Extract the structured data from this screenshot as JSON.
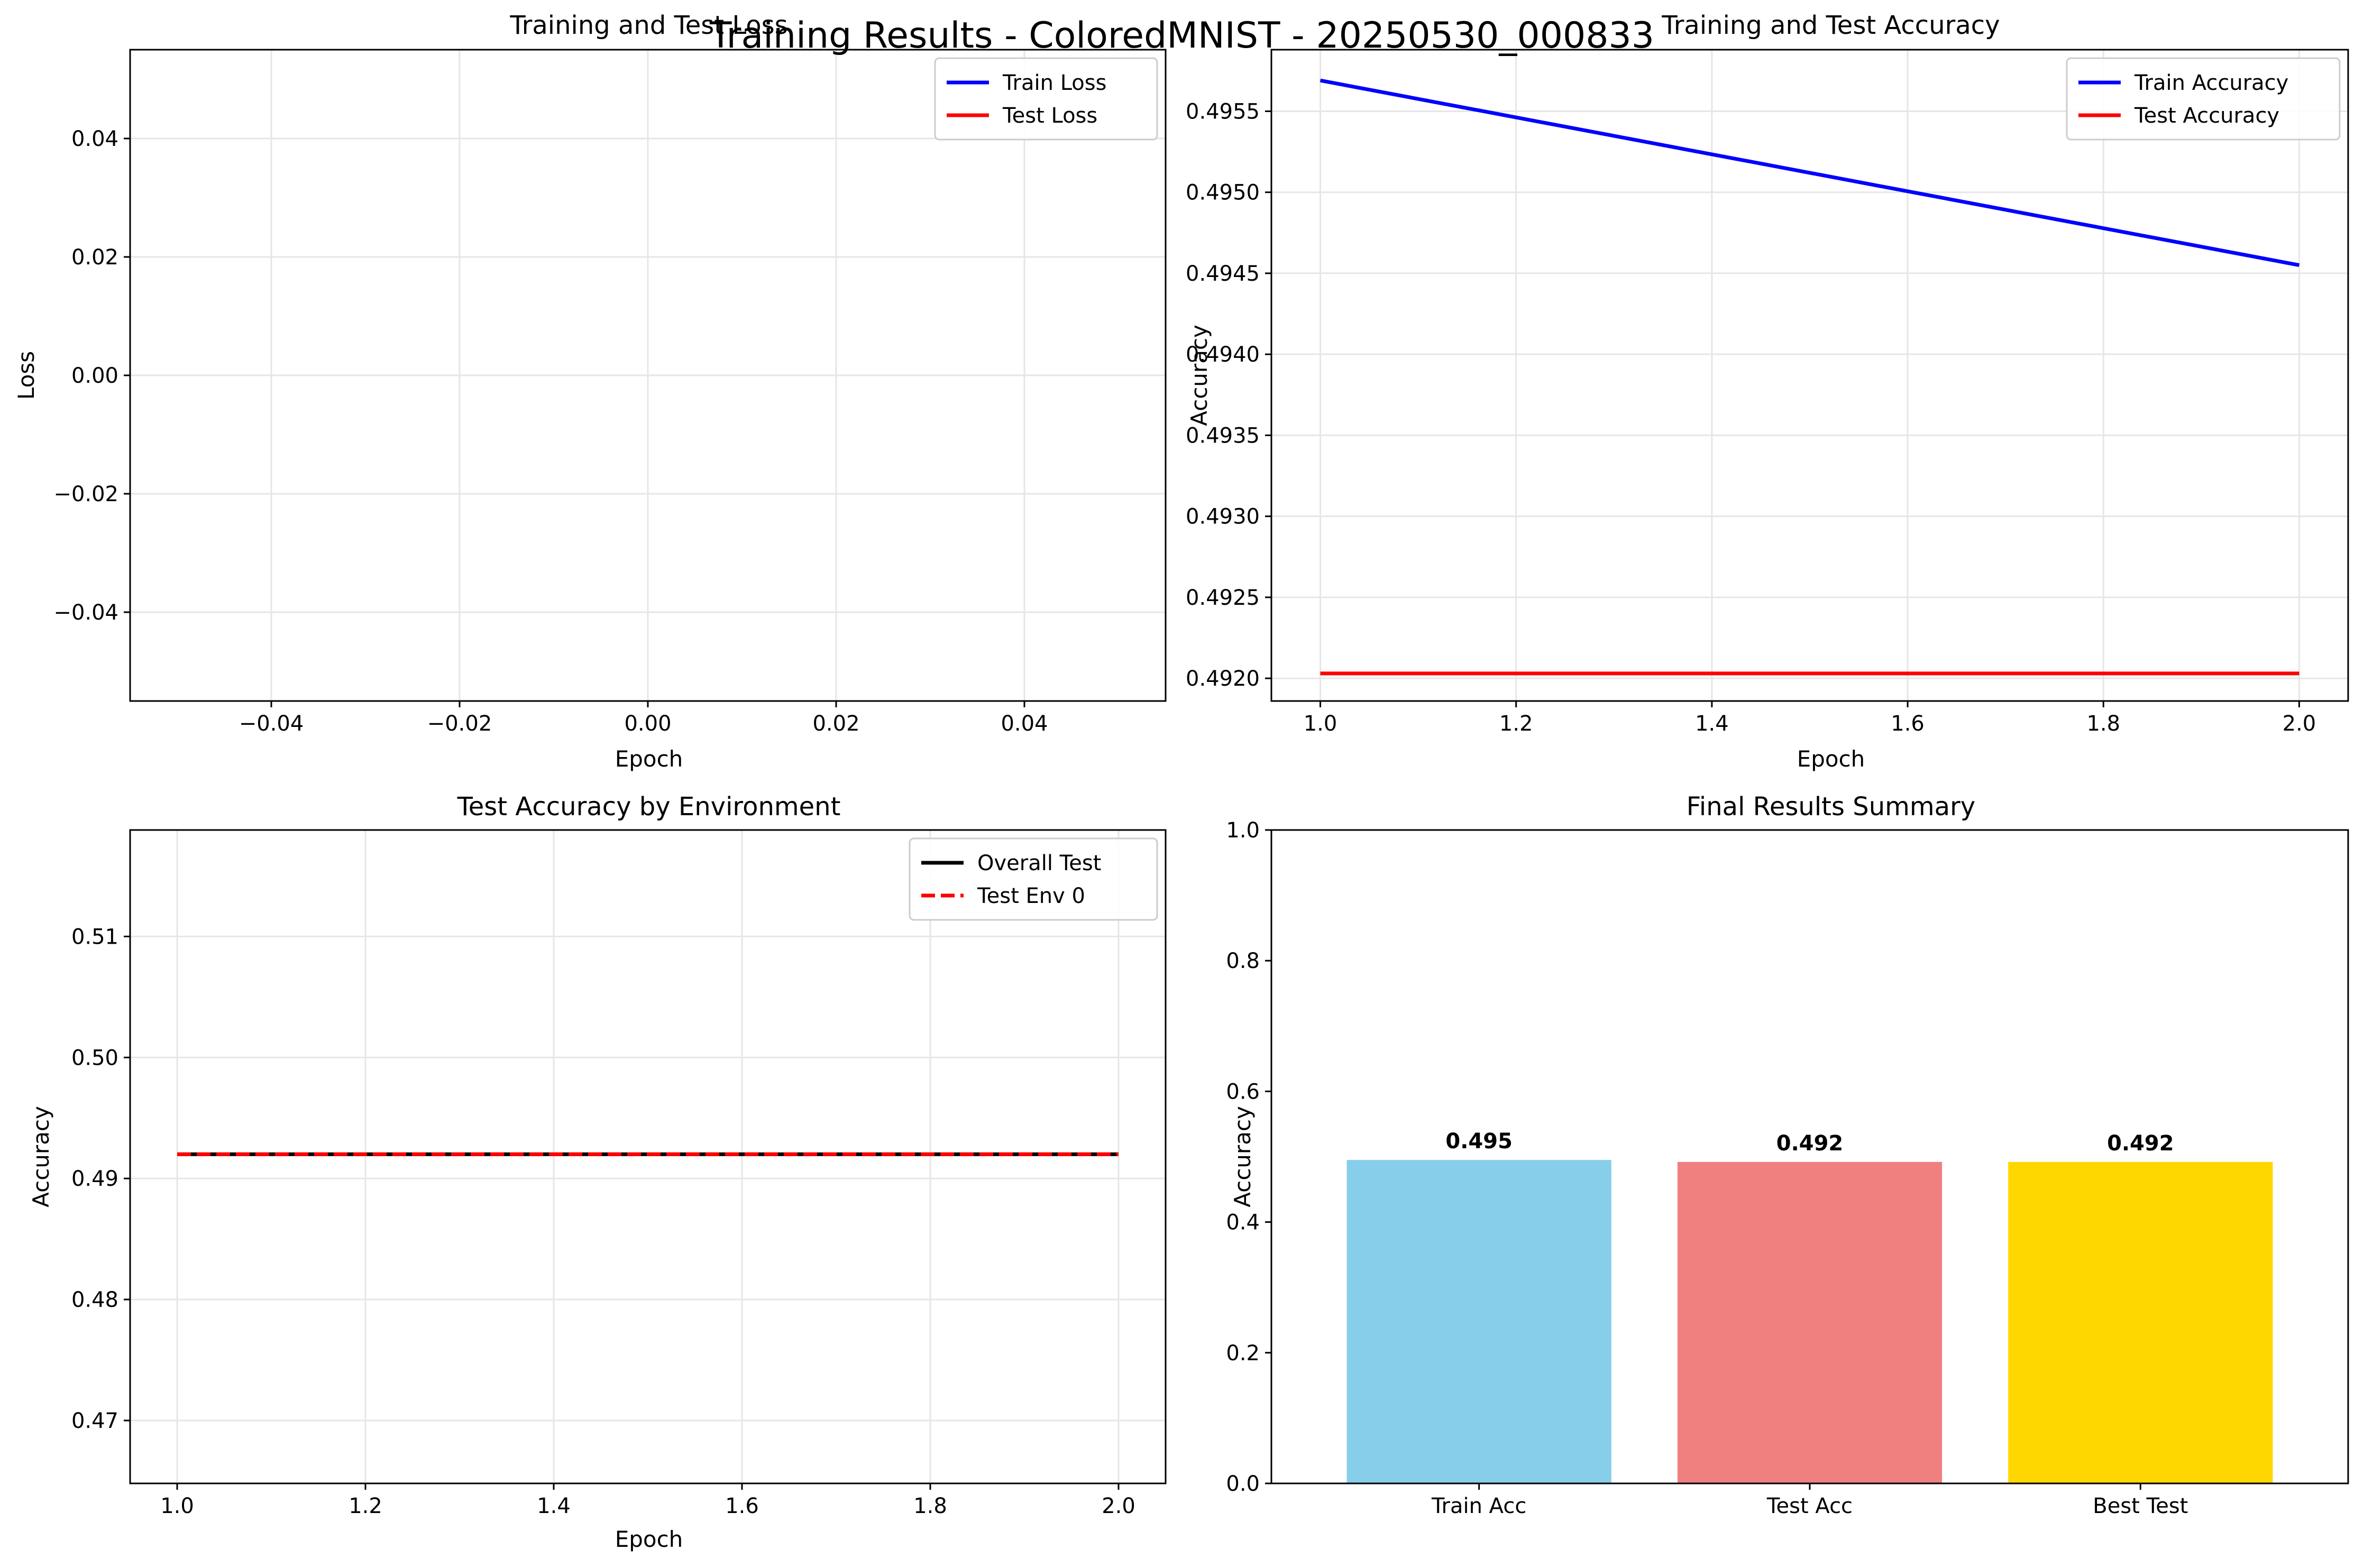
{
  "suptitle": "Training Results - ColoredMNIST - 20250530_000833",
  "chart_data": [
    {
      "type": "line",
      "title": "Training and Test Loss",
      "xlabel": "Epoch",
      "ylabel": "Loss",
      "xlim": [
        -0.055,
        0.055
      ],
      "ylim": [
        -0.055,
        0.055
      ],
      "xticks": [
        -0.04,
        -0.02,
        0.0,
        0.02,
        0.04
      ],
      "yticks": [
        -0.04,
        -0.02,
        0.0,
        0.02,
        0.04
      ],
      "xtick_labels": [
        "−0.04",
        "−0.02",
        "0.00",
        "0.02",
        "0.04"
      ],
      "ytick_labels": [
        "−0.04",
        "−0.02",
        "0.00",
        "0.02",
        "0.04"
      ],
      "grid": true,
      "legend": "top-right",
      "series": [
        {
          "name": "Train Loss",
          "color": "#0000ff",
          "dash": "solid",
          "x": [],
          "y": []
        },
        {
          "name": "Test Loss",
          "color": "#ff0000",
          "dash": "solid",
          "x": [],
          "y": []
        }
      ]
    },
    {
      "type": "line",
      "title": "Training and Test Accuracy",
      "xlabel": "Epoch",
      "ylabel": "Accuracy",
      "xlim": [
        0.95,
        2.05
      ],
      "ylim": [
        0.49186,
        0.49588
      ],
      "xticks": [
        1.0,
        1.2,
        1.4,
        1.6,
        1.8,
        2.0
      ],
      "yticks": [
        0.492,
        0.4925,
        0.493,
        0.4935,
        0.494,
        0.4945,
        0.495,
        0.4955
      ],
      "xtick_labels": [
        "1.0",
        "1.2",
        "1.4",
        "1.6",
        "1.8",
        "2.0"
      ],
      "ytick_labels": [
        "0.4920",
        "0.4925",
        "0.4930",
        "0.4935",
        "0.4940",
        "0.4945",
        "0.4950",
        "0.4955"
      ],
      "grid": true,
      "legend": "top-right",
      "series": [
        {
          "name": "Train Accuracy",
          "color": "#0000ff",
          "dash": "solid",
          "x": [
            1.0,
            2.0
          ],
          "y": [
            0.49569,
            0.49455
          ]
        },
        {
          "name": "Test Accuracy",
          "color": "#ff0000",
          "dash": "solid",
          "x": [
            1.0,
            2.0
          ],
          "y": [
            0.49203,
            0.49203
          ]
        }
      ]
    },
    {
      "type": "line",
      "title": "Test Accuracy by Environment",
      "xlabel": "Epoch",
      "ylabel": "Accuracy",
      "xlim": [
        0.95,
        2.05
      ],
      "ylim": [
        0.4648,
        0.5188
      ],
      "xticks": [
        1.0,
        1.2,
        1.4,
        1.6,
        1.8,
        2.0
      ],
      "yticks": [
        0.47,
        0.48,
        0.49,
        0.5,
        0.51
      ],
      "xtick_labels": [
        "1.0",
        "1.2",
        "1.4",
        "1.6",
        "1.8",
        "2.0"
      ],
      "ytick_labels": [
        "0.47",
        "0.48",
        "0.49",
        "0.50",
        "0.51"
      ],
      "grid": true,
      "legend": "top-right",
      "series": [
        {
          "name": "Overall Test",
          "color": "#000000",
          "dash": "solid",
          "x": [
            1.0,
            2.0
          ],
          "y": [
            0.492,
            0.492
          ]
        },
        {
          "name": "Test Env 0",
          "color": "#ff0000",
          "dash": "dashed",
          "x": [
            1.0,
            2.0
          ],
          "y": [
            0.492,
            0.492
          ]
        }
      ]
    },
    {
      "type": "bar",
      "title": "Final Results Summary",
      "xlabel": "",
      "ylabel": "Accuracy",
      "ylim": [
        0,
        1.0
      ],
      "yticks": [
        0.0,
        0.2,
        0.4,
        0.6,
        0.8,
        1.0
      ],
      "ytick_labels": [
        "0.0",
        "0.2",
        "0.4",
        "0.6",
        "0.8",
        "1.0"
      ],
      "grid": false,
      "categories": [
        "Train Acc",
        "Test Acc",
        "Best Test"
      ],
      "values": [
        0.495,
        0.492,
        0.492
      ],
      "value_labels": [
        "0.495",
        "0.492",
        "0.492"
      ],
      "colors": [
        "#87ceeb",
        "#f08080",
        "#ffd700"
      ]
    }
  ]
}
